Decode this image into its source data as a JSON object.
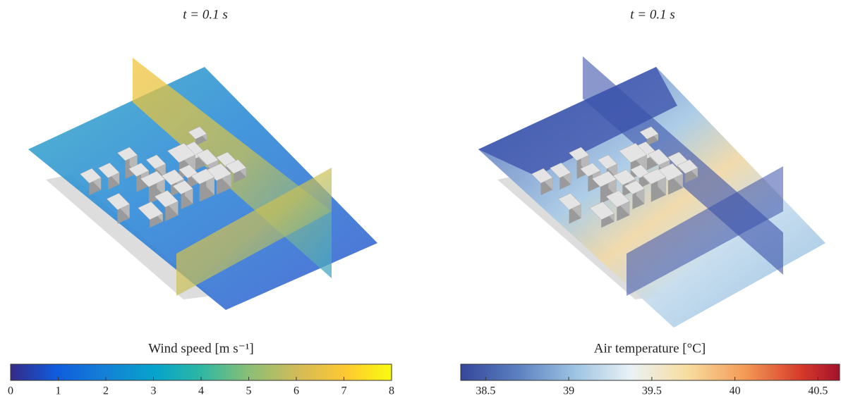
{
  "panels": [
    {
      "title": "t = 0.1 s",
      "colorbar": {
        "label": "Wind speed [m s⁻¹]",
        "lim": [
          0,
          8
        ],
        "ticks": [
          0,
          1,
          2,
          3,
          4,
          5,
          6,
          7,
          8
        ]
      }
    },
    {
      "title": "t = 0.1 s",
      "colorbar": {
        "label": "Air temperature [°C]",
        "lim": [
          38.35,
          40.63
        ],
        "ticks": [
          38.5,
          39,
          39.5,
          40,
          40.5
        ]
      }
    }
  ]
}
